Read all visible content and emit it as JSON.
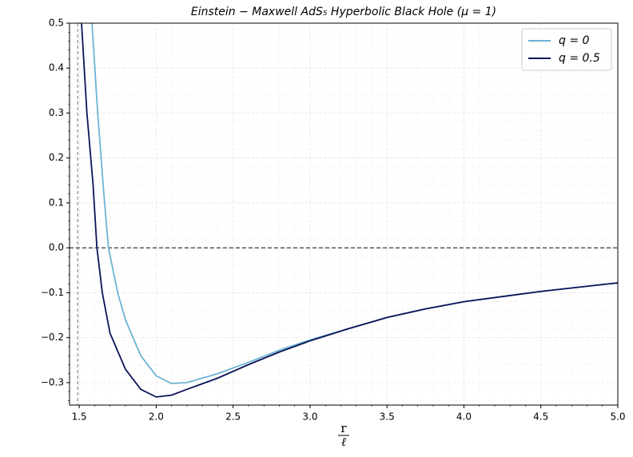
{
  "chart_data": {
    "type": "line",
    "title": "Einstein − Maxwell   AdS₅ Hyperbolic Black Hole (μ = 1)",
    "xlabel_numerator": "r",
    "xlabel_denominator": "ℓ",
    "xlim": [
      1.437,
      5.0
    ],
    "ylim": [
      -0.35,
      0.5
    ],
    "xticks": [
      1.5,
      {
        "value": 2,
        "label": "2.0"
      },
      2.5,
      {
        "value": 3,
        "label": "3.0"
      },
      3.5,
      {
        "value": 4,
        "label": "4.0"
      },
      4.5,
      {
        "value": 5,
        "label": "5.0"
      }
    ],
    "yticks": [
      {
        "value": -0.3,
        "label": "−0.3"
      },
      {
        "value": -0.2,
        "label": "−0.2"
      },
      {
        "value": -0.1,
        "label": "−0.1"
      },
      {
        "value": 0,
        "label": "0.0"
      },
      0.1,
      0.2,
      0.3,
      0.4,
      0.5
    ],
    "grid": true,
    "hline": 0,
    "vline": 1.49,
    "legend": "upper right",
    "series": [
      {
        "name": "q = 0",
        "color": "#6bb3d4",
        "x": [
          1.583,
          1.62,
          1.66,
          1.69,
          1.75,
          1.8,
          1.9,
          2.0,
          2.1,
          2.2,
          2.4,
          2.6,
          2.8,
          3.0,
          3.25,
          3.5,
          3.75,
          4.0,
          4.5,
          5.0
        ],
        "values": [
          0.5,
          0.3,
          0.12,
          0.0,
          -0.1,
          -0.16,
          -0.24,
          -0.285,
          -0.302,
          -0.3,
          -0.28,
          -0.255,
          -0.228,
          -0.205,
          -0.18,
          -0.155,
          -0.136,
          -0.12,
          -0.097,
          -0.078
        ]
      },
      {
        "name": "q = 0.5",
        "color": "#0b1457",
        "x": [
          1.515,
          1.55,
          1.59,
          1.615,
          1.65,
          1.7,
          1.8,
          1.9,
          2.0,
          2.1,
          2.2,
          2.4,
          2.6,
          2.8,
          3.0,
          3.25,
          3.5,
          3.75,
          4.0,
          4.5,
          5.0
        ],
        "values": [
          0.5,
          0.3,
          0.14,
          0.0,
          -0.1,
          -0.19,
          -0.27,
          -0.315,
          -0.332,
          -0.328,
          -0.315,
          -0.29,
          -0.26,
          -0.232,
          -0.207,
          -0.18,
          -0.155,
          -0.136,
          -0.12,
          -0.097,
          -0.078
        ]
      }
    ]
  }
}
